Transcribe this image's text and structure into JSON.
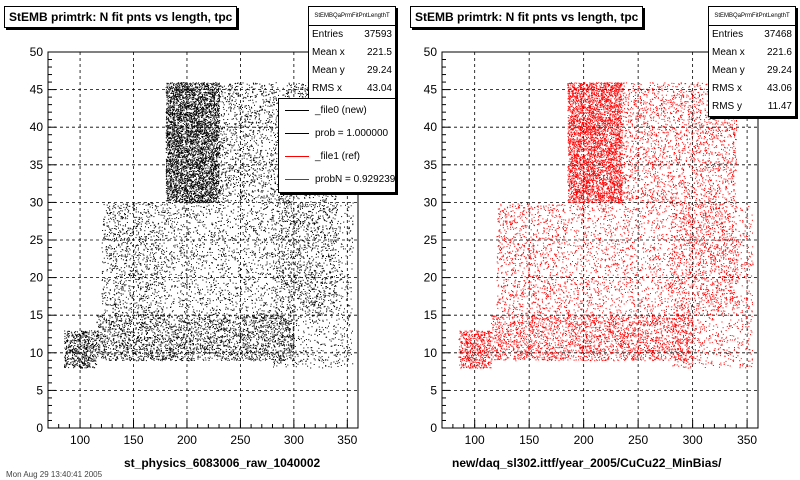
{
  "panels": [
    {
      "title": "StEMB primtrk: N fit pnts vs length, tpc",
      "xlabel": "st_physics_6083006_raw_1040002",
      "stats": {
        "name": "StEMBQaPrmFitPntLengthT",
        "rows": [
          {
            "label": "Entries",
            "value": "37593"
          },
          {
            "label": "Mean x",
            "value": "221.5"
          },
          {
            "label": "Mean y",
            "value": "29.24"
          },
          {
            "label": "RMS x",
            "value": "43.04"
          }
        ]
      },
      "legend": [
        {
          "label": "_file0 (new)",
          "color": "#000000"
        },
        {
          "label": "prob = 1.000000",
          "color": "#000000"
        },
        {
          "label": "_file1 (ref)",
          "color": "#ff0000"
        },
        {
          "label": "probN = 0.929239",
          "color": "#ff0000"
        }
      ]
    },
    {
      "title": "StEMB primtrk: N fit pnts vs length, tpc",
      "xlabel": "new/daq_sl302.ittf/year_2005/CuCu22_MinBias/",
      "stats": {
        "name": "StEMBQaPrmFitPntLengthT",
        "rows": [
          {
            "label": "Entries",
            "value": "37468"
          },
          {
            "label": "Mean x",
            "value": "221.6"
          },
          {
            "label": "Mean y",
            "value": "29.24"
          },
          {
            "label": "RMS x",
            "value": "43.06"
          },
          {
            "label": "RMS y",
            "value": "11.47"
          }
        ]
      }
    }
  ],
  "footer": "Mon Aug 29 13:40:41 2005",
  "chart_data": [
    {
      "type": "scatter",
      "title": "StEMB primtrk: N fit pnts vs length, tpc",
      "xlabel": "st_physics_6083006_raw_1040002",
      "ylabel": "",
      "xlim": [
        70,
        360
      ],
      "ylim": [
        0,
        50
      ],
      "x_ticks": [
        100,
        150,
        200,
        250,
        300,
        350
      ],
      "y_ticks": [
        0,
        5,
        10,
        15,
        20,
        25,
        30,
        35,
        40,
        45,
        50
      ],
      "grid": true,
      "color": "#000000",
      "entries": 37593,
      "mean_x": 221.5,
      "mean_y": 29.24,
      "rms_x": 43.04,
      "density_regions": [
        {
          "x": [
            180,
            230
          ],
          "y": [
            30,
            46
          ],
          "weight": 0.32
        },
        {
          "x": [
            230,
            340
          ],
          "y": [
            30,
            46
          ],
          "weight": 0.16
        },
        {
          "x": [
            180,
            340
          ],
          "y": [
            15,
            30
          ],
          "weight": 0.14
        },
        {
          "x": [
            115,
            300
          ],
          "y": [
            9,
            15
          ],
          "weight": 0.18
        },
        {
          "x": [
            120,
            180
          ],
          "y": [
            15,
            30
          ],
          "weight": 0.08
        },
        {
          "x": [
            85,
            115
          ],
          "y": [
            8,
            13
          ],
          "weight": 0.04
        },
        {
          "x": [
            280,
            355
          ],
          "y": [
            8,
            30
          ],
          "weight": 0.08
        }
      ]
    },
    {
      "type": "scatter",
      "title": "StEMB primtrk: N fit pnts vs length, tpc",
      "xlabel": "new/daq_sl302.ittf/year_2005/CuCu22_MinBias/",
      "ylabel": "",
      "xlim": [
        70,
        360
      ],
      "ylim": [
        0,
        50
      ],
      "x_ticks": [
        100,
        150,
        200,
        250,
        300,
        350
      ],
      "y_ticks": [
        0,
        5,
        10,
        15,
        20,
        25,
        30,
        35,
        40,
        45,
        50
      ],
      "grid": true,
      "color": "#ff0000",
      "entries": 37468,
      "mean_x": 221.6,
      "mean_y": 29.24,
      "rms_x": 43.06,
      "rms_y": 11.47,
      "density_regions": [
        {
          "x": [
            185,
            235
          ],
          "y": [
            30,
            46
          ],
          "weight": 0.3
        },
        {
          "x": [
            235,
            340
          ],
          "y": [
            30,
            46
          ],
          "weight": 0.16
        },
        {
          "x": [
            185,
            340
          ],
          "y": [
            15,
            30
          ],
          "weight": 0.15
        },
        {
          "x": [
            115,
            300
          ],
          "y": [
            9,
            15
          ],
          "weight": 0.18
        },
        {
          "x": [
            120,
            185
          ],
          "y": [
            15,
            30
          ],
          "weight": 0.08
        },
        {
          "x": [
            85,
            115
          ],
          "y": [
            8,
            13
          ],
          "weight": 0.04
        },
        {
          "x": [
            280,
            355
          ],
          "y": [
            8,
            30
          ],
          "weight": 0.09
        }
      ]
    }
  ]
}
